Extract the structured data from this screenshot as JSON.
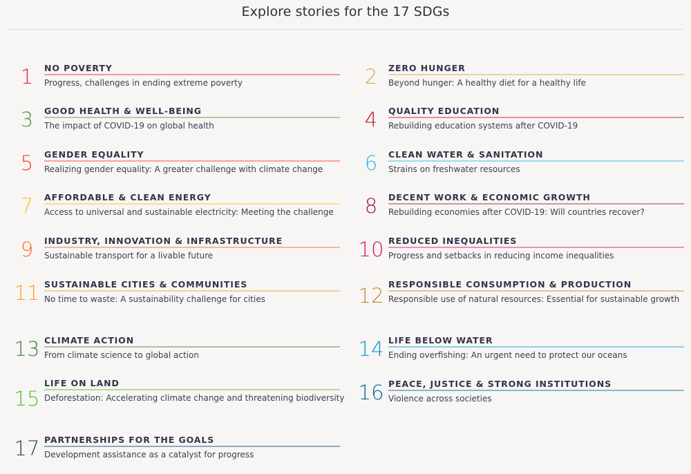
{
  "header": {
    "title": "Explore stories for the 17 SDGs"
  },
  "goals": [
    {
      "number": "1",
      "title": "NO POVERTY",
      "story": "Progress, challenges in ending extreme poverty",
      "color": "#E5243B"
    },
    {
      "number": "2",
      "title": "ZERO HUNGER",
      "story": "Beyond hunger: A healthy diet for a healthy life",
      "color": "#DDA63A"
    },
    {
      "number": "3",
      "title": "GOOD HEALTH & WELL-BEING",
      "story": "The impact of COVID-19 on global health",
      "color": "#4C9F38"
    },
    {
      "number": "4",
      "title": "QUALITY EDUCATION",
      "story": "Rebuilding education systems after COVID-19",
      "color": "#C5192D"
    },
    {
      "number": "5",
      "title": "GENDER EQUALITY",
      "story": "Realizing gender equality: A greater challenge with climate change",
      "color": "#FF3A21"
    },
    {
      "number": "6",
      "title": "CLEAN WATER & SANITATION",
      "story": "Strains on freshwater resources",
      "color": "#26BDE2"
    },
    {
      "number": "7",
      "title": "AFFORDABLE & CLEAN ENERGY",
      "story": "Access to universal and sustainable electricity: Meeting the challenge",
      "color": "#FCC30B"
    },
    {
      "number": "8",
      "title": "DECENT WORK & ECONOMIC GROWTH",
      "story": "Rebuilding economies after COVID-19: Will countries recover?",
      "color": "#A21942"
    },
    {
      "number": "9",
      "title": "INDUSTRY, INNOVATION & INFRASTRUCTURE",
      "story": "Sustainable transport for a livable future",
      "color": "#FD6925"
    },
    {
      "number": "10",
      "title": "REDUCED INEQUALITIES",
      "story": "Progress and setbacks in reducing income inequalities",
      "color": "#DD1367"
    },
    {
      "number": "11",
      "title": "SUSTAINABLE CITIES & COMMUNITIES",
      "story": "No time to waste: A sustainability challenge for cities",
      "color": "#FD9D24"
    },
    {
      "number": "12",
      "title": "RESPONSIBLE CONSUMPTION & PRODUCTION",
      "story": "Responsible use of natural resources: Essential for sustainable growth",
      "color": "#BF8B2E"
    },
    {
      "number": "13",
      "title": "CLIMATE ACTION",
      "story": "From climate science to global action",
      "color": "#3F7E44"
    },
    {
      "number": "14",
      "title": "LIFE BELOW WATER",
      "story": "Ending overfishing: An urgent need to protect our oceans",
      "color": "#0A97D9"
    },
    {
      "number": "15",
      "title": "LIFE ON LAND",
      "story": "Deforestation: Accelerating climate change and threatening biodiversity",
      "color": "#56C02B"
    },
    {
      "number": "16",
      "title": "PEACE, JUSTICE & STRONG INSTITUTIONS",
      "story": "Violence across societies",
      "color": "#00689D"
    },
    {
      "number": "17",
      "title": "PARTNERSHIPS FOR THE GOALS",
      "story": "Development assistance as a catalyst for progress",
      "color": "#19486A"
    }
  ]
}
